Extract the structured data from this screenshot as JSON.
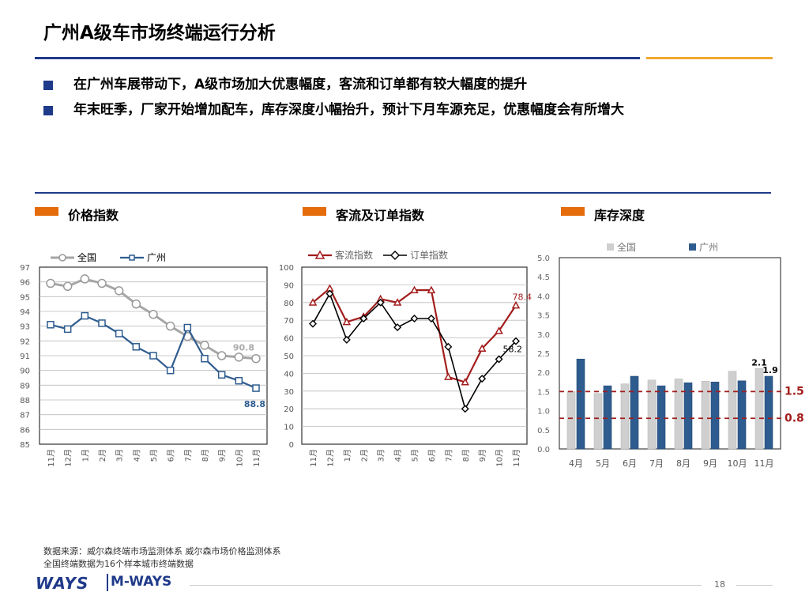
{
  "title": "广州A级车市场终端运行分析",
  "bullets": [
    "在广州车展带动下，A级市场加大优惠幅度，客流和订单都有较大幅度的提升",
    "年末旺季，厂家开始增加配车，库存深度小幅抬升，预计下月车源充足，优惠幅度会有所增大"
  ],
  "panel_titles": [
    "价格指数",
    "客流及订单指数",
    "库存深度"
  ],
  "colors": {
    "accent_blue": "#1f3a8a",
    "accent_orange": "#e46c0a",
    "accent_gold": "#f0a830",
    "series_red": "#a31d1d",
    "series_gray": "#a6a6a6",
    "series_darkblue": "#2f5c8f"
  },
  "chart_data": [
    {
      "type": "line",
      "categories": [
        "11月",
        "12月",
        "1月",
        "2月",
        "3月",
        "4月",
        "5月",
        "6月",
        "7月",
        "8月",
        "9月",
        "10月",
        "11月"
      ],
      "ylim": [
        85,
        97
      ],
      "yticks": [
        "85",
        "86",
        "87",
        "88",
        "89",
        "90",
        "91",
        "92",
        "93",
        "94",
        "95",
        "96",
        "97"
      ],
      "grid": true,
      "legend_position": "top-left",
      "series": [
        {
          "name": "全国",
          "values": [
            95.9,
            95.7,
            96.2,
            95.9,
            95.4,
            94.5,
            93.8,
            93.0,
            92.3,
            91.7,
            91.0,
            90.9,
            90.8
          ],
          "end_label": "90.8"
        },
        {
          "name": "广州",
          "values": [
            93.1,
            92.8,
            93.7,
            93.2,
            92.5,
            91.6,
            91.0,
            90.0,
            92.9,
            90.8,
            89.7,
            89.3,
            88.8
          ],
          "end_label": "88.8"
        }
      ]
    },
    {
      "type": "line",
      "categories": [
        "11月",
        "12月",
        "1月",
        "2月",
        "3月",
        "4月",
        "5月",
        "6月",
        "7月",
        "8月",
        "9月",
        "10月",
        "11月"
      ],
      "ylim": [
        0,
        100
      ],
      "yticks": [
        "0",
        "10",
        "20",
        "30",
        "40",
        "50",
        "60",
        "70",
        "80",
        "90",
        "100"
      ],
      "grid": true,
      "legend_position": "top-left",
      "series": [
        {
          "name": "客流指数",
          "values": [
            80,
            88,
            69,
            72,
            82,
            80,
            87,
            87,
            38,
            35,
            54,
            64,
            78.4
          ],
          "end_label": "78.4"
        },
        {
          "name": "订单指数",
          "values": [
            68,
            85,
            59,
            71,
            80,
            66,
            71,
            71,
            55,
            20,
            37,
            48,
            58.2
          ],
          "end_label": "58.2"
        }
      ]
    },
    {
      "type": "bar",
      "categories": [
        "4月",
        "5月",
        "6月",
        "7月",
        "8月",
        "9月",
        "10月",
        "11月"
      ],
      "ylim": [
        0,
        5
      ],
      "yticks": [
        "0.0",
        "0.5",
        "1.0",
        "1.5",
        "2.0",
        "2.5",
        "3.0",
        "3.5",
        "4.0",
        "4.5",
        "5.0"
      ],
      "legend_position": "top",
      "series": [
        {
          "name": "全国",
          "values": [
            1.5,
            1.45,
            1.7,
            1.8,
            1.83,
            1.77,
            2.03,
            2.1
          ]
        },
        {
          "name": "广州",
          "values": [
            2.35,
            1.65,
            1.9,
            1.65,
            1.73,
            1.75,
            1.78,
            1.9
          ]
        }
      ],
      "data_labels": [
        "2.1",
        "1.9"
      ],
      "reference_lines": [
        {
          "value": 1.5,
          "label": "1.5"
        },
        {
          "value": 0.8,
          "label": "0.8"
        }
      ]
    }
  ],
  "source_lines": [
    "数据来源：威尔森终端市场监测体系  威尔森市场价格监测体系",
    "全国终端数据为16个样本城市终端数据"
  ],
  "logos": {
    "left": "WAYS",
    "right": "M-WAYS"
  },
  "page_number": "18"
}
